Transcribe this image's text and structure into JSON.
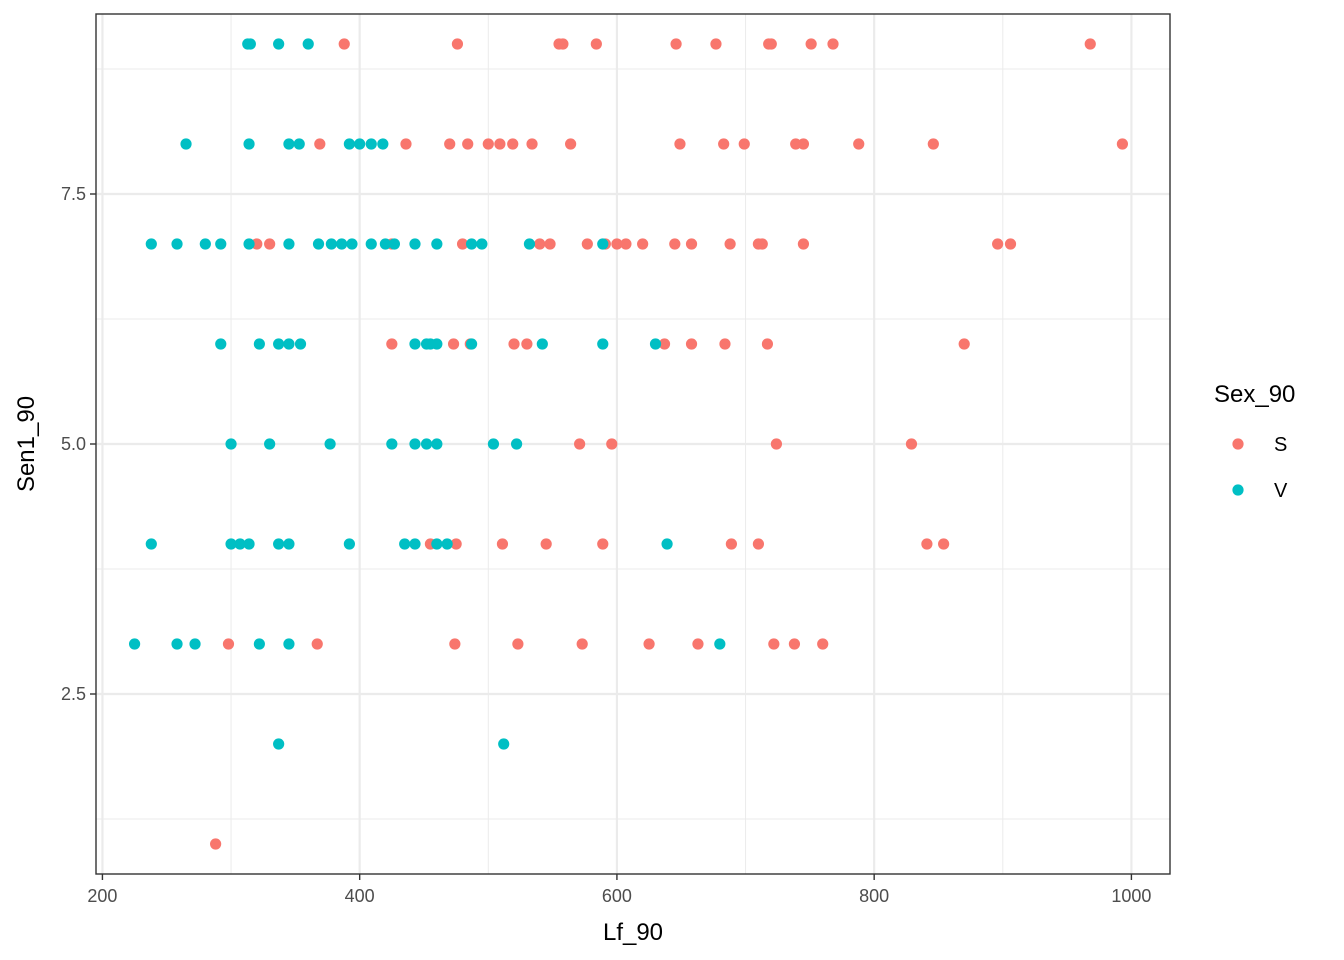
{
  "chart_data": {
    "type": "scatter",
    "xlabel": "Lf_90",
    "ylabel": "Sen1_90",
    "xlim": [
      195,
      1030
    ],
    "ylim": [
      0.7,
      9.3
    ],
    "x_ticks": [
      200,
      400,
      600,
      800,
      1000
    ],
    "x_tick_labels": [
      "200",
      "400",
      "600",
      "800",
      "1000"
    ],
    "y_ticks": [
      2.5,
      5.0,
      7.5
    ],
    "y_tick_labels": [
      "2.5",
      "5.0",
      "7.5"
    ],
    "x_minor": [
      300,
      500,
      700,
      900
    ],
    "y_minor": [
      1.25,
      3.75,
      6.25,
      8.75
    ],
    "grid": true,
    "legend": {
      "title": "Sex_90",
      "position": "right"
    },
    "series": [
      {
        "name": "S",
        "color": "#F8766D",
        "points": [
          [
            388,
            9
          ],
          [
            476,
            9
          ],
          [
            555,
            9
          ],
          [
            558,
            9
          ],
          [
            584,
            9
          ],
          [
            646,
            9
          ],
          [
            677,
            9
          ],
          [
            718,
            9
          ],
          [
            720,
            9
          ],
          [
            751,
            9
          ],
          [
            768,
            9
          ],
          [
            968,
            9
          ],
          [
            369,
            8
          ],
          [
            436,
            8
          ],
          [
            470,
            8
          ],
          [
            484,
            8
          ],
          [
            500,
            8
          ],
          [
            509,
            8
          ],
          [
            519,
            8
          ],
          [
            534,
            8
          ],
          [
            564,
            8
          ],
          [
            649,
            8
          ],
          [
            683,
            8
          ],
          [
            699,
            8
          ],
          [
            739,
            8
          ],
          [
            745,
            8
          ],
          [
            788,
            8
          ],
          [
            846,
            8
          ],
          [
            993,
            8
          ],
          [
            320,
            7
          ],
          [
            330,
            7
          ],
          [
            425,
            7
          ],
          [
            480,
            7
          ],
          [
            540,
            7
          ],
          [
            548,
            7
          ],
          [
            577,
            7
          ],
          [
            591,
            7
          ],
          [
            600,
            7
          ],
          [
            607,
            7
          ],
          [
            620,
            7
          ],
          [
            645,
            7
          ],
          [
            658,
            7
          ],
          [
            688,
            7
          ],
          [
            710,
            7
          ],
          [
            713,
            7
          ],
          [
            745,
            7
          ],
          [
            896,
            7
          ],
          [
            906,
            7
          ],
          [
            425,
            6
          ],
          [
            473,
            6
          ],
          [
            486,
            6
          ],
          [
            520,
            6
          ],
          [
            530,
            6
          ],
          [
            637,
            6
          ],
          [
            658,
            6
          ],
          [
            684,
            6
          ],
          [
            717,
            6
          ],
          [
            870,
            6
          ],
          [
            571,
            5
          ],
          [
            596,
            5
          ],
          [
            724,
            5
          ],
          [
            829,
            5
          ],
          [
            455,
            4
          ],
          [
            475,
            4
          ],
          [
            511,
            4
          ],
          [
            545,
            4
          ],
          [
            589,
            4
          ],
          [
            689,
            4
          ],
          [
            710,
            4
          ],
          [
            841,
            4
          ],
          [
            854,
            4
          ],
          [
            298,
            3
          ],
          [
            367,
            3
          ],
          [
            474,
            3
          ],
          [
            523,
            3
          ],
          [
            573,
            3
          ],
          [
            625,
            3
          ],
          [
            663,
            3
          ],
          [
            722,
            3
          ],
          [
            738,
            3
          ],
          [
            760,
            3
          ],
          [
            288,
            1
          ]
        ]
      },
      {
        "name": "V",
        "color": "#00BFC4",
        "points": [
          [
            313,
            9
          ],
          [
            315,
            9
          ],
          [
            337,
            9
          ],
          [
            360,
            9
          ],
          [
            265,
            8
          ],
          [
            314,
            8
          ],
          [
            345,
            8
          ],
          [
            353,
            8
          ],
          [
            392,
            8
          ],
          [
            400,
            8
          ],
          [
            409,
            8
          ],
          [
            418,
            8
          ],
          [
            238,
            7
          ],
          [
            258,
            7
          ],
          [
            280,
            7
          ],
          [
            292,
            7
          ],
          [
            314,
            7
          ],
          [
            345,
            7
          ],
          [
            368,
            7
          ],
          [
            378,
            7
          ],
          [
            386,
            7
          ],
          [
            394,
            7
          ],
          [
            409,
            7
          ],
          [
            420,
            7
          ],
          [
            427,
            7
          ],
          [
            443,
            7
          ],
          [
            460,
            7
          ],
          [
            487,
            7
          ],
          [
            495,
            7
          ],
          [
            532,
            7
          ],
          [
            589,
            7
          ],
          [
            292,
            6
          ],
          [
            322,
            6
          ],
          [
            337,
            6
          ],
          [
            345,
            6
          ],
          [
            354,
            6
          ],
          [
            443,
            6
          ],
          [
            452,
            6
          ],
          [
            455,
            6
          ],
          [
            460,
            6
          ],
          [
            487,
            6
          ],
          [
            542,
            6
          ],
          [
            589,
            6
          ],
          [
            630,
            6
          ],
          [
            300,
            5
          ],
          [
            330,
            5
          ],
          [
            377,
            5
          ],
          [
            425,
            5
          ],
          [
            443,
            5
          ],
          [
            452,
            5
          ],
          [
            460,
            5
          ],
          [
            504,
            5
          ],
          [
            522,
            5
          ],
          [
            238,
            4
          ],
          [
            300,
            4
          ],
          [
            307,
            4
          ],
          [
            314,
            4
          ],
          [
            337,
            4
          ],
          [
            345,
            4
          ],
          [
            392,
            4
          ],
          [
            435,
            4
          ],
          [
            443,
            4
          ],
          [
            460,
            4
          ],
          [
            468,
            4
          ],
          [
            639,
            4
          ],
          [
            225,
            3
          ],
          [
            258,
            3
          ],
          [
            272,
            3
          ],
          [
            322,
            3
          ],
          [
            345,
            3
          ],
          [
            680,
            3
          ],
          [
            337,
            2
          ],
          [
            512,
            2
          ]
        ]
      }
    ]
  }
}
